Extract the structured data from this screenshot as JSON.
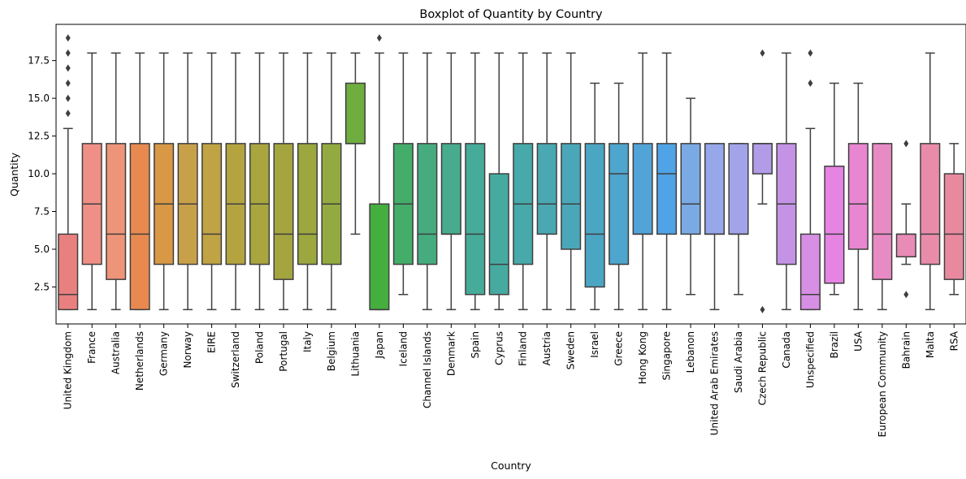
{
  "chart_data": {
    "type": "box",
    "title": "Boxplot of Quantity by Country",
    "xlabel": "Country",
    "ylabel": "Quantity",
    "ylim": [
      0.05,
      19.9
    ],
    "yticks": [
      "2.5",
      "5.0",
      "7.5",
      "10.0",
      "12.5",
      "15.0",
      "17.5"
    ],
    "grid": false,
    "legend": "none",
    "boxes": [
      {
        "category": "United Kingdom",
        "color": "#e8807f",
        "whislo": 1,
        "q1": 1,
        "med": 2,
        "q3": 6,
        "whishi": 13,
        "fliers": [
          14,
          15,
          16,
          17,
          18,
          19
        ]
      },
      {
        "category": "France",
        "color": "#ef8f86",
        "whislo": 1,
        "q1": 4,
        "med": 8,
        "q3": 12,
        "whishi": 18,
        "fliers": []
      },
      {
        "category": "Australia",
        "color": "#ee9478",
        "whislo": 1,
        "q1": 3,
        "med": 6,
        "q3": 12,
        "whishi": 18,
        "fliers": []
      },
      {
        "category": "Netherlands",
        "color": "#e8894f",
        "whislo": 1,
        "q1": 1,
        "med": 6,
        "q3": 12,
        "whishi": 18,
        "fliers": []
      },
      {
        "category": "Germany",
        "color": "#d89845",
        "whislo": 1,
        "q1": 4,
        "med": 8,
        "q3": 12,
        "whishi": 18,
        "fliers": []
      },
      {
        "category": "Norway",
        "color": "#c9a04a",
        "whislo": 1,
        "q1": 4,
        "med": 8,
        "q3": 12,
        "whishi": 18,
        "fliers": []
      },
      {
        "category": "EIRE",
        "color": "#c0a344",
        "whislo": 1,
        "q1": 4,
        "med": 6,
        "q3": 12,
        "whishi": 18,
        "fliers": []
      },
      {
        "category": "Switzerland",
        "color": "#b3a440",
        "whislo": 1,
        "q1": 4,
        "med": 8,
        "q3": 12,
        "whishi": 18,
        "fliers": []
      },
      {
        "category": "Poland",
        "color": "#a9a640",
        "whislo": 1,
        "q1": 4,
        "med": 8,
        "q3": 12,
        "whishi": 18,
        "fliers": []
      },
      {
        "category": "Portugal",
        "color": "#a4a53f",
        "whislo": 1,
        "q1": 3,
        "med": 6,
        "q3": 12,
        "whishi": 18,
        "fliers": []
      },
      {
        "category": "Italy",
        "color": "#9ca73f",
        "whislo": 1,
        "q1": 4,
        "med": 6,
        "q3": 12,
        "whishi": 18,
        "fliers": []
      },
      {
        "category": "Belgium",
        "color": "#93aa40",
        "whislo": 1,
        "q1": 4,
        "med": 8,
        "q3": 12,
        "whishi": 18,
        "fliers": []
      },
      {
        "category": "Lithuania",
        "color": "#6fad3f",
        "whislo": 6,
        "q1": 12,
        "med": 12,
        "q3": 16,
        "whishi": 18,
        "fliers": []
      },
      {
        "category": "Japan",
        "color": "#44ae3f",
        "whislo": 1,
        "q1": 1,
        "med": 1,
        "q3": 8,
        "whishi": 18,
        "fliers": [
          19
        ]
      },
      {
        "category": "Iceland",
        "color": "#44ad6a",
        "whislo": 2,
        "q1": 4,
        "med": 8,
        "q3": 12,
        "whishi": 18,
        "fliers": []
      },
      {
        "category": "Channel Islands",
        "color": "#46ac80",
        "whislo": 1,
        "q1": 4,
        "med": 6,
        "q3": 12,
        "whishi": 18,
        "fliers": []
      },
      {
        "category": "Denmark",
        "color": "#48ab8e",
        "whislo": 1,
        "q1": 6,
        "med": 6,
        "q3": 12,
        "whishi": 18,
        "fliers": []
      },
      {
        "category": "Spain",
        "color": "#46ab98",
        "whislo": 1,
        "q1": 2,
        "med": 6,
        "q3": 12,
        "whishi": 18,
        "fliers": []
      },
      {
        "category": "Cyprus",
        "color": "#47aaa1",
        "whislo": 1,
        "q1": 2,
        "med": 4,
        "q3": 10,
        "whishi": 18,
        "fliers": []
      },
      {
        "category": "Finland",
        "color": "#47a9a9",
        "whislo": 1,
        "q1": 4,
        "med": 8,
        "q3": 12,
        "whishi": 18,
        "fliers": []
      },
      {
        "category": "Austria",
        "color": "#49a8b2",
        "whislo": 1,
        "q1": 6,
        "med": 8,
        "q3": 12,
        "whishi": 18,
        "fliers": []
      },
      {
        "category": "Sweden",
        "color": "#4aa7b9",
        "whislo": 1,
        "q1": 5,
        "med": 8,
        "q3": 12,
        "whishi": 18,
        "fliers": []
      },
      {
        "category": "Israel",
        "color": "#4ba6c3",
        "whislo": 1,
        "q1": 2.5,
        "med": 6,
        "q3": 12,
        "whishi": 16,
        "fliers": []
      },
      {
        "category": "Greece",
        "color": "#4ea5cd",
        "whislo": 1,
        "q1": 4,
        "med": 10,
        "q3": 12,
        "whishi": 16,
        "fliers": []
      },
      {
        "category": "Hong Kong",
        "color": "#51a4d8",
        "whislo": 1,
        "q1": 6,
        "med": 6,
        "q3": 12,
        "whishi": 18,
        "fliers": []
      },
      {
        "category": "Singapore",
        "color": "#4fa3e6",
        "whislo": 1,
        "q1": 6,
        "med": 10,
        "q3": 12,
        "whishi": 18,
        "fliers": []
      },
      {
        "category": "Lebanon",
        "color": "#79aae3",
        "whislo": 2,
        "q1": 6,
        "med": 8,
        "q3": 12,
        "whishi": 15,
        "fliers": []
      },
      {
        "category": "United Arab Emirates",
        "color": "#96a8e9",
        "whislo": 1,
        "q1": 6,
        "med": 6,
        "q3": 12,
        "whishi": 12,
        "fliers": []
      },
      {
        "category": "Saudi Arabia",
        "color": "#a3a3ea",
        "whislo": 2,
        "q1": 6,
        "med": 6,
        "q3": 12,
        "whishi": 12,
        "fliers": []
      },
      {
        "category": "Czech Republic",
        "color": "#b29ce8",
        "whislo": 8,
        "q1": 10,
        "med": 12,
        "q3": 12,
        "whishi": 12,
        "fliers": [
          1,
          18
        ]
      },
      {
        "category": "Canada",
        "color": "#c493e6",
        "whislo": 1,
        "q1": 4,
        "med": 8,
        "q3": 12,
        "whishi": 18,
        "fliers": []
      },
      {
        "category": "Unspecified",
        "color": "#d68fe4",
        "whislo": 1,
        "q1": 1,
        "med": 2,
        "q3": 6,
        "whishi": 13,
        "fliers": [
          16,
          18
        ]
      },
      {
        "category": "Brazil",
        "color": "#e584e2",
        "whislo": 2,
        "q1": 2.75,
        "med": 6,
        "q3": 10.5,
        "whishi": 16,
        "fliers": []
      },
      {
        "category": "USA",
        "color": "#e886d2",
        "whislo": 1,
        "q1": 5,
        "med": 8,
        "q3": 12,
        "whishi": 16,
        "fliers": []
      },
      {
        "category": "European Community",
        "color": "#e88ac4",
        "whislo": 1,
        "q1": 3,
        "med": 6,
        "q3": 12,
        "whishi": 12,
        "fliers": []
      },
      {
        "category": "Bahrain",
        "color": "#e88bb6",
        "whislo": 4,
        "q1": 4.5,
        "med": 6,
        "q3": 6,
        "whishi": 8,
        "fliers": [
          2,
          12
        ]
      },
      {
        "category": "Malta",
        "color": "#e88caa",
        "whislo": 1,
        "q1": 4,
        "med": 6,
        "q3": 12,
        "whishi": 18,
        "fliers": []
      },
      {
        "category": "RSA",
        "color": "#e8899e",
        "whislo": 2,
        "q1": 3,
        "med": 6,
        "q3": 10,
        "whishi": 12,
        "fliers": []
      }
    ]
  }
}
